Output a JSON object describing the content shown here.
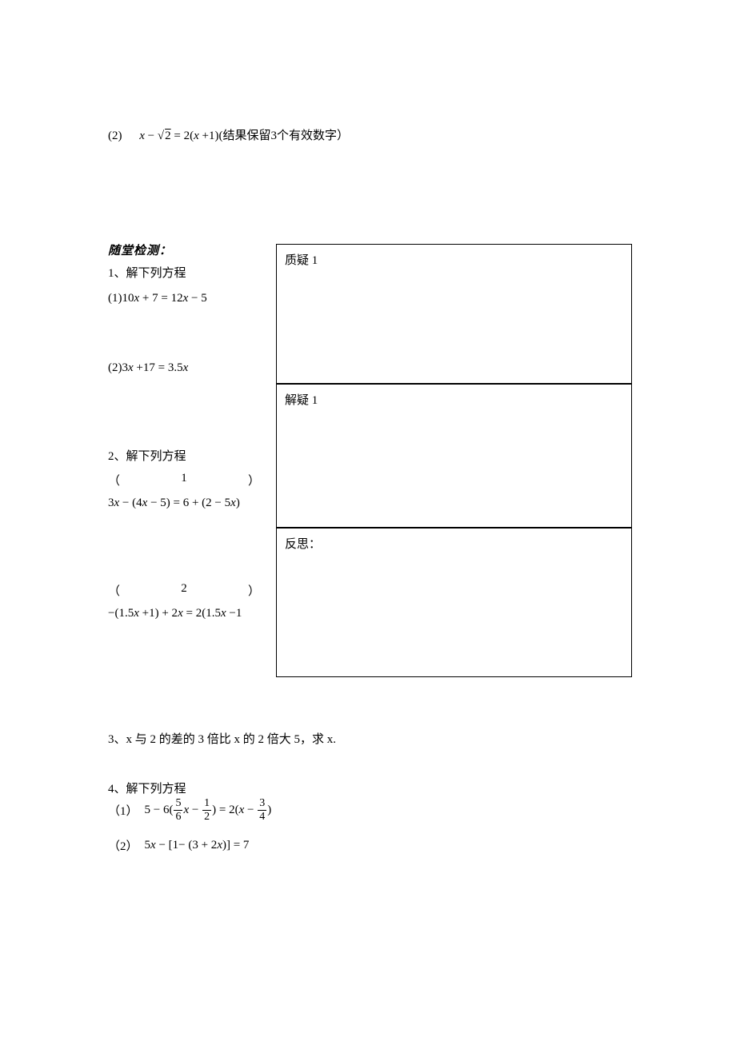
{
  "top_equation": {
    "label": "(2)",
    "stem_html": "<span class='math'>x</span> − √<span class='sqrt'>2</span> = 2(<span class='math'>x</span> + 1)",
    "note": "(结果保留3个有效数字）"
  },
  "section_header": "随堂检测：",
  "problem1": {
    "title": "1、解下列方程",
    "eq1": "(1)10x + 7 = 12x − 5",
    "eq2": "(2)3x + 17 = 3.5x"
  },
  "problem2": {
    "title": "2、解下列方程",
    "label_open": "（",
    "label_close": "）",
    "num1": "1",
    "eq1": "3x − (4x − 5) = 6 + (2 − 5x)",
    "num2": "2",
    "eq2": "−(1.5x + 1) + 2x = 2(1.5x − 1"
  },
  "boxes": {
    "box1": "质疑 1",
    "box2": "解疑 1",
    "box3": "反思："
  },
  "problem3": {
    "text": "3、x 与 2 的差的 3 倍比 x 的 2 倍大 5，求 x."
  },
  "problem4": {
    "title": "4、解下列方程",
    "label1": "（1）",
    "eq1_pre": "5 − 6(",
    "eq1_f1_num": "5",
    "eq1_f1_den": "6",
    "eq1_mid1": "x − ",
    "eq1_f2_num": "1",
    "eq1_f2_den": "2",
    "eq1_mid2": ") = 2(x − ",
    "eq1_f3_num": "3",
    "eq1_f3_den": "4",
    "eq1_post": ")",
    "label2": "（2）",
    "eq2": "5x − [1 − (3 + 2x)] = 7"
  }
}
